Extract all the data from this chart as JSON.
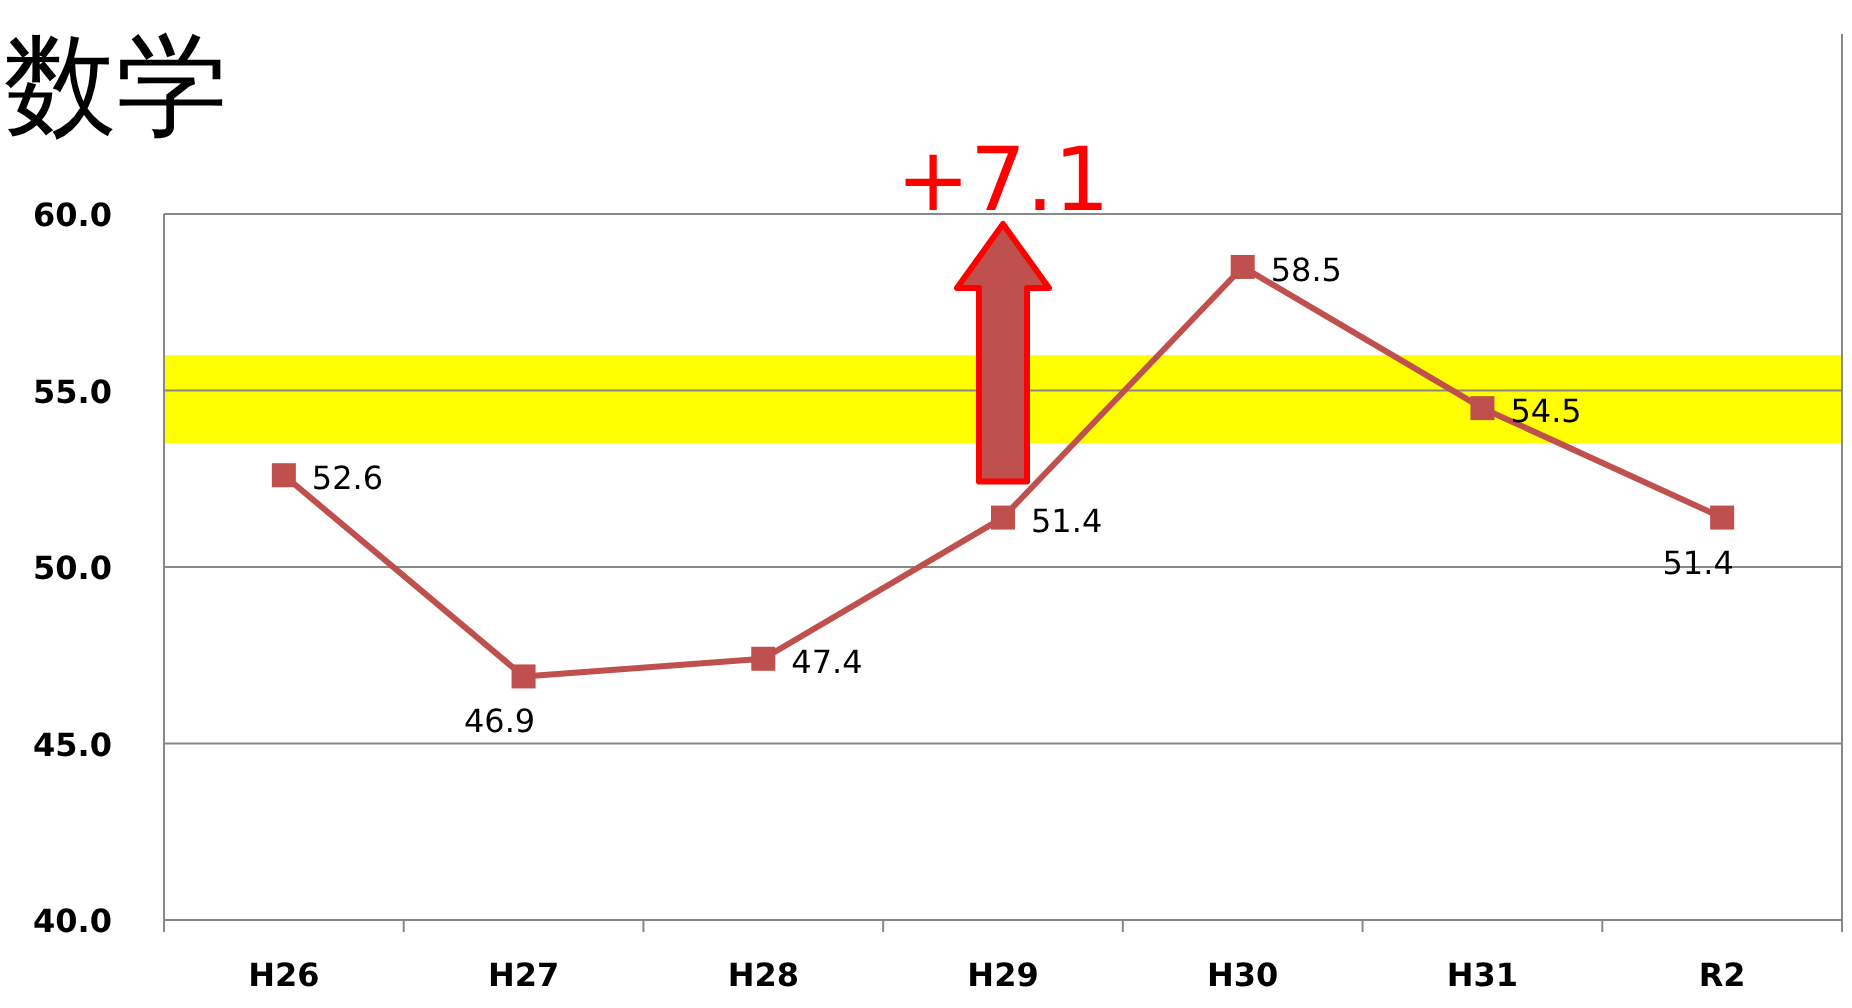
{
  "chart_data": {
    "type": "line",
    "title": "数学",
    "categories": [
      "H26",
      "H27",
      "H28",
      "H29",
      "H30",
      "H31",
      "R2"
    ],
    "series": [
      {
        "color": "#c0504d",
        "values": [
          52.6,
          46.9,
          47.4,
          51.4,
          58.5,
          54.5,
          51.4
        ]
      }
    ],
    "ylim": [
      40,
      60
    ],
    "yticks": [
      {
        "value": 40,
        "label": "40.0"
      },
      {
        "value": 45,
        "label": "45.0"
      },
      {
        "value": 50,
        "label": "50.0"
      },
      {
        "value": 55,
        "label": "55.0"
      },
      {
        "value": 60,
        "label": "60.0"
      }
    ],
    "grid": "y",
    "marker": "square",
    "line_style": "solid",
    "data_labels": true,
    "bands": [
      {
        "axis": "y",
        "from": 53.5,
        "to": 56.0,
        "color": "#ffff00"
      }
    ],
    "annotations": [
      "+7.1"
    ]
  }
}
